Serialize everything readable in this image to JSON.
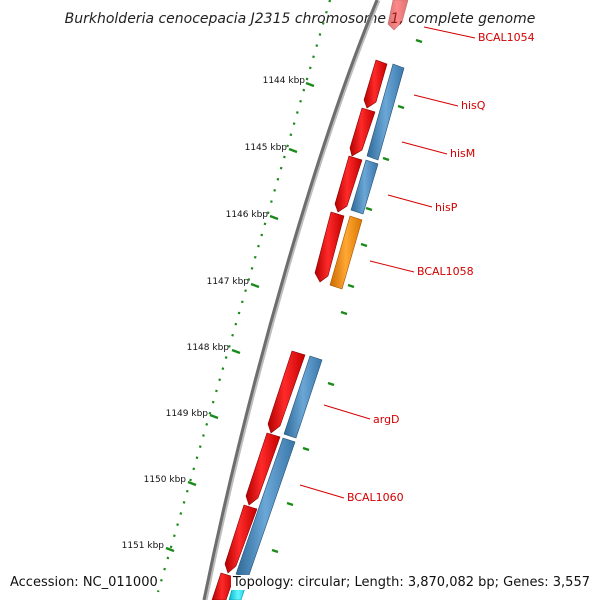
{
  "title": "Burkholderia cenocepacia J2315 chromosome 1, complete genome",
  "footer": {
    "accession": "Accession: NC_011000",
    "topology": "Topology: circular; Length: 3,870,082 bp; Genes: 3,557"
  },
  "colors": {
    "backbone": "#7a7a7a",
    "ruler": "#1a8a1a",
    "gene_forward": "#ee0000",
    "gene_reverse": "#4a86b8",
    "gene_other": "#ff8c00",
    "gene_rna": "#00e5ff",
    "label": "#d40000"
  },
  "ruler": {
    "ticks": [
      "1144 kbp",
      "1145 kbp",
      "1146 kbp",
      "1147 kbp",
      "1148 kbp",
      "1149 kbp",
      "1150 kbp",
      "1151 kbp"
    ]
  },
  "gene_labels": [
    "BCAL1054",
    "hisQ",
    "hisM",
    "hisP",
    "BCAL1058",
    "argD",
    "BCAL1060"
  ]
}
